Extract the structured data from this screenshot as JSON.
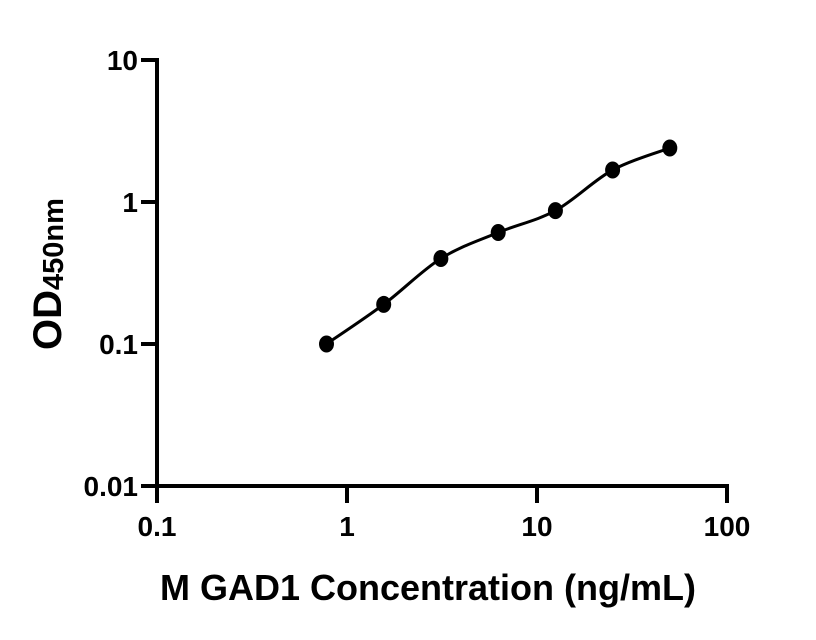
{
  "figure": {
    "background_color": "#ffffff",
    "axis_color": "#000000",
    "marker_color": "#000000",
    "line_color": "#000000"
  },
  "chart_data": {
    "type": "scatter",
    "title": "",
    "xlabel": "M GAD1 Concentration (ng/mL)",
    "ylabel_main": "OD",
    "ylabel_sub": "450nm",
    "x_scale": "log",
    "y_scale": "log",
    "xlim": [
      0.1,
      100
    ],
    "ylim": [
      0.01,
      10
    ],
    "grid": false,
    "legend": null,
    "x": [
      0.78,
      1.56,
      3.12,
      6.25,
      12.5,
      25,
      50
    ],
    "y": [
      0.1,
      0.19,
      0.4,
      0.61,
      0.87,
      1.68,
      2.4
    ],
    "x_ticks": {
      "values": [
        0.1,
        1,
        10,
        100
      ],
      "labels": [
        "0.1",
        "1",
        "10",
        "100"
      ]
    },
    "y_ticks": {
      "values": [
        0.01,
        0.1,
        1,
        10
      ],
      "labels": [
        "0.01",
        "0.1",
        "1",
        "10"
      ]
    }
  }
}
